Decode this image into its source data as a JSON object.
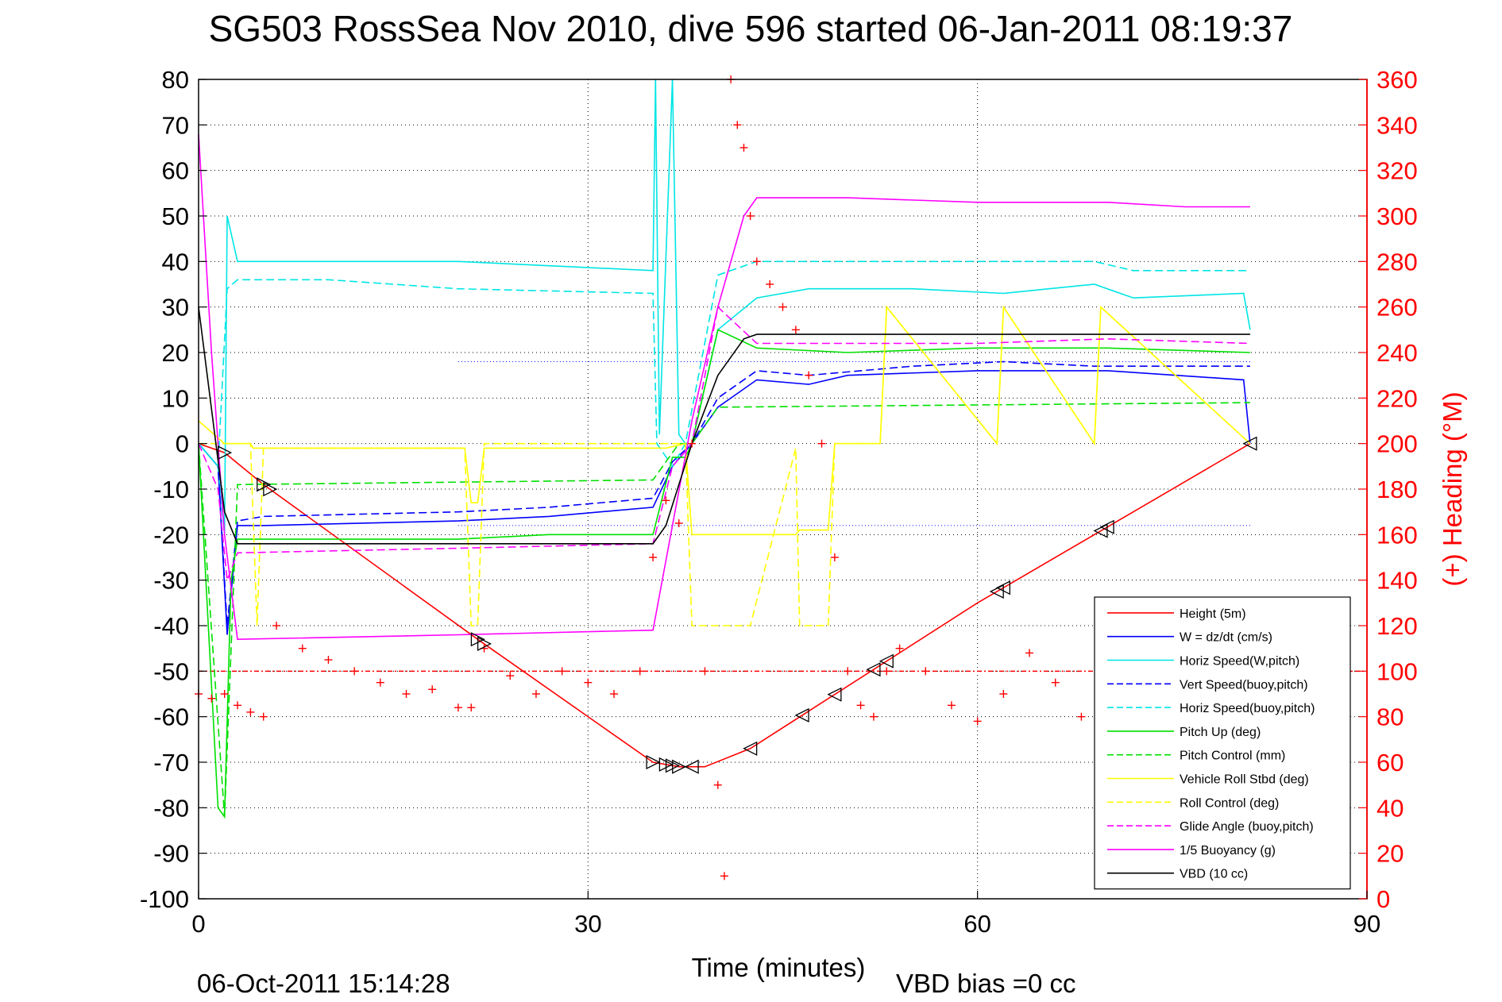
{
  "chart_data": {
    "type": "line",
    "title": "SG503 RossSea Nov 2010, dive 596 started 06-Jan-2011 08:19:37",
    "xlabel": "Time (minutes)",
    "ylabel_right": "(+) Heading (°M)",
    "xlim": [
      0,
      90
    ],
    "ylim_left": [
      -100,
      80
    ],
    "ylim_right": [
      0,
      360
    ],
    "x_ticks": [
      "0",
      "30",
      "60",
      "90"
    ],
    "x_tick_values": [
      0,
      30,
      60,
      90
    ],
    "y_left_ticks": [
      "80",
      "70",
      "60",
      "50",
      "40",
      "30",
      "20",
      "10",
      "0",
      "-10",
      "-20",
      "-30",
      "-40",
      "-50",
      "-60",
      "-70",
      "-80",
      "-90",
      "-100"
    ],
    "y_left_tick_values": [
      80,
      70,
      60,
      50,
      40,
      30,
      20,
      10,
      0,
      -10,
      -20,
      -30,
      -40,
      -50,
      -60,
      -70,
      -80,
      -90,
      -100
    ],
    "y_right_ticks": [
      "360",
      "340",
      "320",
      "300",
      "280",
      "260",
      "240",
      "220",
      "200",
      "180",
      "160",
      "140",
      "120",
      "100",
      "80",
      "60",
      "40",
      "20",
      "0"
    ],
    "y_right_tick_values": [
      360,
      340,
      320,
      300,
      280,
      260,
      240,
      220,
      200,
      180,
      160,
      140,
      120,
      100,
      80,
      60,
      40,
      20,
      0
    ],
    "grid": "dotted",
    "legend_position": "lower-right",
    "series": [
      {
        "name": "Height (5m)",
        "color": "#ff0000",
        "dash": "solid",
        "x": [
          0,
          2,
          5,
          21.5,
          35,
          37,
          38,
          39,
          42.5,
          60,
          81
        ],
        "y": [
          0,
          -2,
          -9,
          -43,
          -70,
          -71,
          -71,
          -71,
          -67,
          -35,
          0
        ]
      },
      {
        "name": "W = dz/dt (cm/s)",
        "color": "#0000ff",
        "dash": "solid",
        "x": [
          0,
          1.5,
          2.2,
          3,
          5,
          20,
          27,
          35,
          36.5,
          38,
          40,
          43,
          47,
          50,
          60,
          70,
          80.5,
          81
        ],
        "y": [
          0,
          -5,
          -42,
          -18,
          -18,
          -17,
          -16,
          -14,
          -5,
          0,
          8,
          14,
          13,
          15,
          16,
          16,
          14,
          0
        ]
      },
      {
        "name": "Horiz Speed(W,pitch)",
        "color": "#00e5e5",
        "dash": "solid",
        "x": [
          0,
          1.5,
          2,
          2.2,
          3,
          10,
          20,
          35,
          35.2,
          35.5,
          36.5,
          37,
          37.5,
          38,
          40,
          43,
          47,
          55,
          62,
          69,
          72,
          80.5,
          81
        ],
        "y": [
          0,
          -5,
          -20,
          50,
          40,
          40,
          40,
          38,
          80,
          2,
          80,
          2,
          0,
          0,
          25,
          32,
          34,
          34,
          33,
          35,
          32,
          33,
          25
        ]
      },
      {
        "name": "Vert Speed(buoy,pitch)",
        "color": "#0000ff",
        "dash": "dashed",
        "x": [
          0,
          1.5,
          2.2,
          3,
          5,
          20,
          27,
          35,
          36.5,
          38,
          40,
          43,
          47,
          55,
          62,
          69,
          81
        ],
        "y": [
          0,
          -5,
          -40,
          -17,
          -16,
          -15,
          -14,
          -12,
          -4,
          0,
          10,
          16,
          15,
          17,
          18,
          17,
          17
        ]
      },
      {
        "name": "Horiz Speed(buoy,pitch)",
        "color": "#00e5e5",
        "dash": "dashed",
        "x": [
          0,
          1.5,
          2.2,
          3,
          10,
          20,
          35,
          35.3,
          36.5,
          37.5,
          40,
          43,
          60,
          69,
          72,
          81
        ],
        "y": [
          0,
          -5,
          34,
          36,
          36,
          34,
          33,
          0,
          -5,
          0,
          37,
          40,
          40,
          40,
          38,
          38
        ]
      },
      {
        "name": "Pitch Up (deg)",
        "color": "#00e000",
        "dash": "solid",
        "x": [
          0,
          1.5,
          2,
          2.5,
          3,
          20,
          27,
          35,
          36.5,
          37.5,
          38,
          40,
          43,
          50,
          60,
          70,
          81
        ],
        "y": [
          0,
          -80,
          -82,
          -30,
          -21,
          -21,
          -20,
          -20,
          -3,
          -3,
          0,
          25,
          21,
          20,
          21,
          21,
          20
        ]
      },
      {
        "name": "Pitch Control (mm)",
        "color": "#00e000",
        "dash": "dashed",
        "x": [
          0,
          2,
          3,
          35,
          37,
          38,
          40,
          81
        ],
        "y": [
          0,
          -82,
          -9,
          -8,
          0,
          0,
          8,
          9
        ]
      },
      {
        "name": "Vehicle Roll Stbd (deg)",
        "color": "#ffff00",
        "dash": "solid",
        "x": [
          0,
          2,
          4,
          4.2,
          20.5,
          21,
          21.5,
          22,
          36,
          37.5,
          38,
          42.5,
          46,
          46.3,
          48.5,
          49,
          52.5,
          53,
          61.5,
          62,
          69,
          69.5,
          81
        ],
        "y": [
          5,
          0,
          0,
          -1,
          -1,
          -13,
          -13,
          -1,
          -1,
          0,
          -20,
          -20,
          -20,
          -19,
          -19,
          0,
          0,
          30,
          0,
          30,
          0,
          30,
          0
        ]
      },
      {
        "name": "Roll Control (deg)",
        "color": "#ffff00",
        "dash": "dashed",
        "x": [
          0,
          2,
          4,
          4.5,
          5,
          20.5,
          21,
          21.5,
          22,
          36,
          37.5,
          38,
          42.5,
          46,
          46.3,
          48.5,
          49,
          52.5,
          53,
          61.5,
          62,
          69,
          69.5,
          81
        ],
        "y": [
          0,
          0,
          0,
          -40,
          -1,
          -1,
          -40,
          -40,
          0,
          0,
          0,
          -40,
          -40,
          -1,
          -40,
          -40,
          0,
          0,
          30,
          0,
          30,
          0,
          30,
          0
        ]
      },
      {
        "name": "Glide Angle (buoy,pitch)",
        "color": "#ff00ff",
        "dash": "dashed",
        "x": [
          0,
          1.5,
          2.2,
          3,
          20,
          35,
          36.5,
          38,
          40,
          43,
          50,
          60,
          70,
          81
        ],
        "y": [
          0,
          -10,
          -30,
          -24,
          -23,
          -22,
          -5,
          0,
          30,
          22,
          22,
          22,
          23,
          22
        ]
      },
      {
        "name": "1/5 Buoyancy (g)",
        "color": "#ff00ff",
        "dash": "solid",
        "x": [
          0,
          1,
          2,
          3,
          20,
          35,
          38,
          40,
          42,
          43,
          50,
          60,
          70,
          76,
          81
        ],
        "y": [
          68,
          20,
          -20,
          -43,
          -42,
          -41,
          5,
          30,
          50,
          54,
          54,
          53,
          53,
          52,
          52
        ]
      },
      {
        "name": "VBD (10 cc)",
        "color": "#000000",
        "dash": "solid",
        "x": [
          0,
          2,
          3,
          20,
          35,
          36,
          38,
          40,
          42,
          43,
          60,
          81
        ],
        "y": [
          30,
          -15,
          -22,
          -22,
          -22,
          -18,
          0,
          15,
          23,
          24,
          24,
          24
        ]
      }
    ],
    "heading_series": {
      "name": "(+) Heading",
      "color": "#ff0000",
      "marker": "+",
      "axis": "right",
      "x": [
        0,
        1,
        2,
        3,
        4,
        5,
        6,
        8,
        10,
        12,
        14,
        16,
        18,
        20,
        21,
        22,
        24,
        26,
        28,
        30,
        32,
        34,
        35,
        36,
        37,
        38,
        39,
        40,
        40.5,
        41,
        41.5,
        42,
        42.5,
        43,
        44,
        45,
        46,
        47,
        48,
        49,
        50,
        51,
        52,
        53,
        54,
        56,
        58,
        60,
        62,
        64,
        66,
        68,
        70
      ],
      "y": [
        90,
        88,
        90,
        85,
        82,
        80,
        120,
        110,
        105,
        100,
        95,
        90,
        92,
        84,
        84,
        110,
        98,
        90,
        100,
        95,
        90,
        100,
        150,
        175,
        165,
        200,
        100,
        50,
        10,
        360,
        340,
        330,
        300,
        280,
        270,
        260,
        250,
        230,
        200,
        150,
        100,
        85,
        80,
        100,
        110,
        100,
        85,
        78,
        90,
        108,
        95,
        80,
        95
      ]
    },
    "reference_line_right": 100,
    "dotted_reference_lines_left": [
      18,
      -18
    ],
    "triangle_marker_times": [
      2,
      5,
      5.5,
      21.5,
      22,
      35,
      36,
      36.5,
      37,
      38,
      42.5,
      46.5,
      49,
      52,
      53,
      61.5,
      62,
      69.5,
      70,
      81
    ],
    "footer_timestamp": "06-Oct-2011 15:14:28",
    "footer_note": "VBD bias =0 cc"
  }
}
